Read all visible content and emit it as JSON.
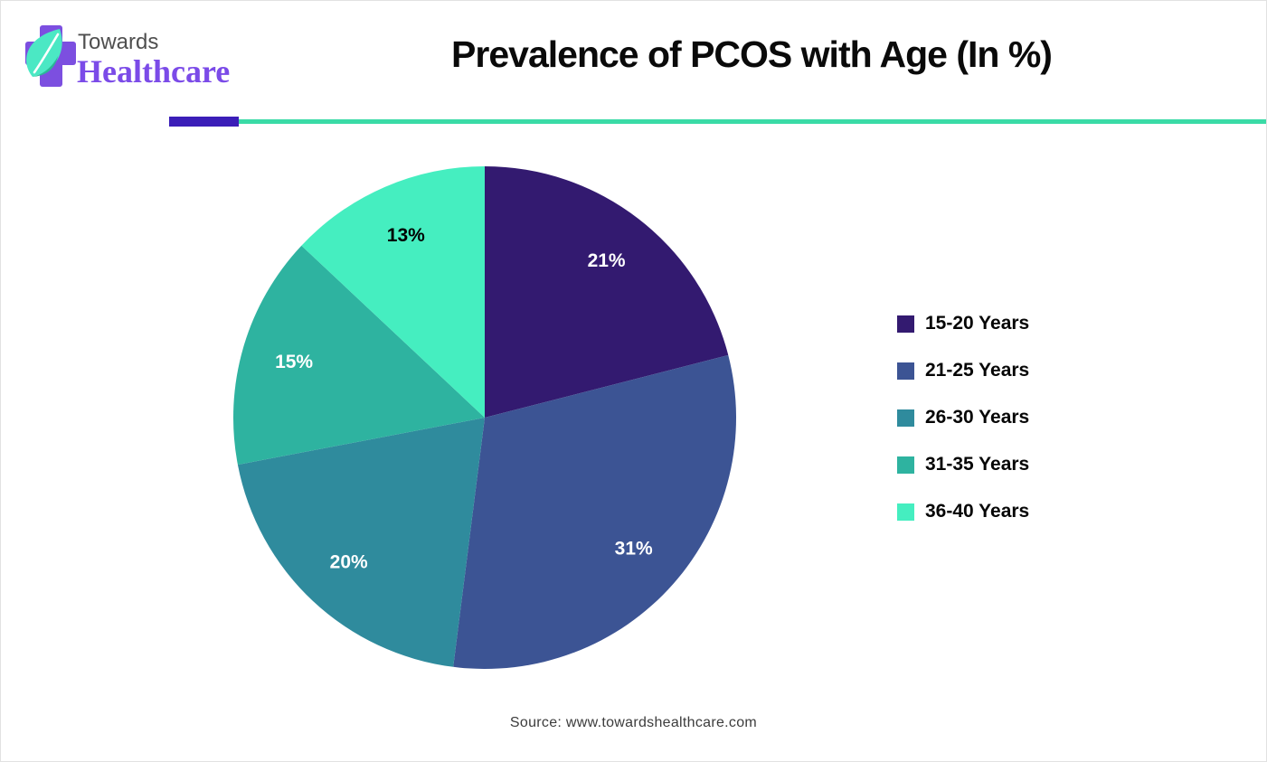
{
  "page": {
    "background": "#FFFFFF",
    "border_color": "#E2E2E2"
  },
  "header": {
    "logo": {
      "line1": "Towards",
      "line2": "Healthcare",
      "cross_color": "#7C4FE0",
      "leaf_color": "#4BE8C4",
      "leaf_accent_color": "#2BB896",
      "line1_color": "#4F4F4F",
      "line2_color": "#7B4BE8"
    },
    "title": "Prevalence of PCOS with Age (In %)"
  },
  "divider": {
    "accent_color": "#3B1EB8",
    "line_color": "#3ADBA6"
  },
  "chart_data": {
    "type": "pie",
    "title": "Prevalence of PCOS with Age (In %)",
    "categories": [
      "15-20 Years",
      "21-25 Years",
      "26-30 Years",
      "31-35 Years",
      "36-40 Years"
    ],
    "values": [
      21,
      31,
      20,
      15,
      13
    ],
    "slice_labels": [
      "21%",
      "31%",
      "20%",
      "15%",
      "13%"
    ],
    "colors": [
      "#331A70",
      "#3C5494",
      "#2F8B9D",
      "#2EB3A0",
      "#45EEC0"
    ],
    "slice_label_colors": [
      "#FFFFFF",
      "#FFFFFF",
      "#FFFFFF",
      "#FFFFFF",
      "#000000"
    ],
    "start_angle_deg": 0,
    "direction": "clockwise",
    "legend_position": "right",
    "legend_text_color": "#060606"
  },
  "footer": {
    "source": "Source: www.towardshealthcare.com"
  }
}
